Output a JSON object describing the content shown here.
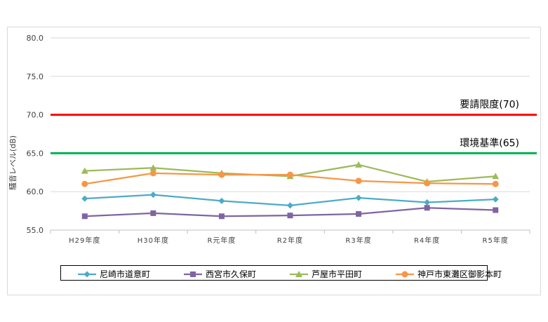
{
  "chart_data": {
    "type": "line",
    "ylabel": "騒音レベル(dB)",
    "ylim": [
      55.0,
      80.0
    ],
    "yticks": [
      "55.0",
      "60.0",
      "65.0",
      "70.0",
      "75.0",
      "80.0"
    ],
    "categories": [
      "H29年度",
      "H30年度",
      "R元年度",
      "R2年度",
      "R3年度",
      "R4年度",
      "R5年度"
    ],
    "series": [
      {
        "name": "尼崎市道意町",
        "marker": "diamond",
        "color": "#4BACC6",
        "values": [
          59.1,
          59.6,
          58.8,
          58.2,
          59.2,
          58.6,
          59.0
        ]
      },
      {
        "name": "西宮市久保町",
        "marker": "square",
        "color": "#8064A2",
        "values": [
          56.8,
          57.2,
          56.8,
          56.9,
          57.1,
          57.9,
          57.6
        ]
      },
      {
        "name": "芦屋市平田町",
        "marker": "triangle",
        "color": "#9BBB59",
        "values": [
          62.7,
          63.1,
          62.4,
          62.0,
          63.5,
          61.3,
          62.0
        ]
      },
      {
        "name": "神戸市東灘区御影本町",
        "marker": "circle",
        "color": "#F79646",
        "values": [
          61.0,
          62.4,
          62.2,
          62.2,
          61.4,
          61.1,
          61.0
        ]
      }
    ],
    "reference_lines": [
      {
        "label": "要請限度(70)",
        "value": 70.0,
        "color": "#FF0000"
      },
      {
        "label": "環境基準(65)",
        "value": 65.0,
        "color": "#00B050"
      }
    ],
    "grid": true,
    "legend_position": "bottom"
  }
}
